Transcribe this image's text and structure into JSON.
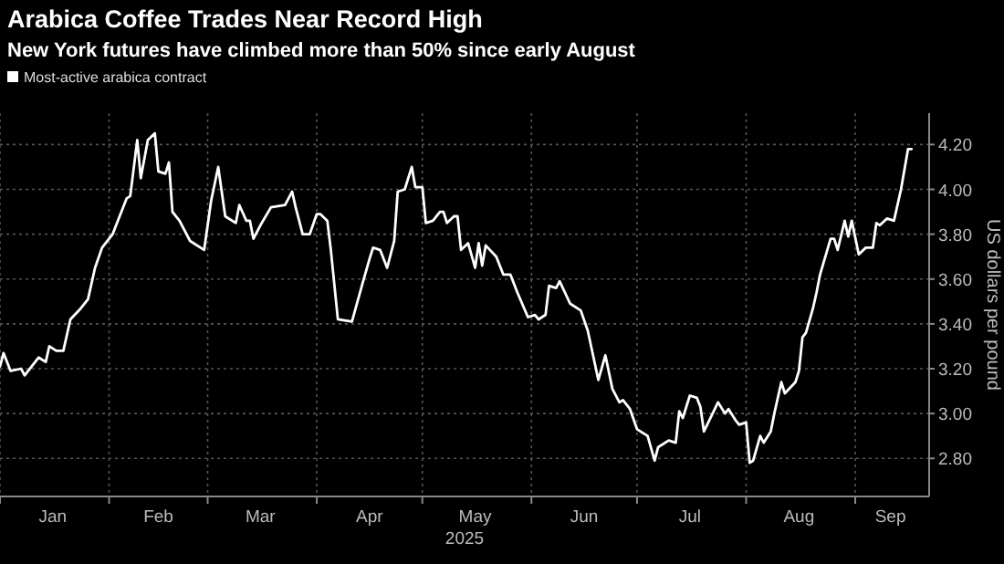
{
  "chart_data": {
    "type": "line",
    "title": "Arabica Coffee Trades Near Record High",
    "subtitle": "New York futures have climbed more than 50% since early August",
    "ylabel": "US dollars per pound",
    "xlabel": "2025",
    "x": [
      "2025-01-01",
      "2025-01-02",
      "2025-01-04",
      "2025-01-07",
      "2025-01-08",
      "2025-01-12",
      "2025-01-14",
      "2025-01-15",
      "2025-01-17",
      "2025-01-19",
      "2025-01-21",
      "2025-01-24",
      "2025-01-26",
      "2025-01-28",
      "2025-01-30",
      "2025-02-02",
      "2025-02-03",
      "2025-02-06",
      "2025-02-07",
      "2025-02-09",
      "2025-02-10",
      "2025-02-12",
      "2025-02-14",
      "2025-02-15",
      "2025-02-17",
      "2025-02-18",
      "2025-02-19",
      "2025-02-21",
      "2025-02-24",
      "2025-02-28",
      "2025-03-02",
      "2025-03-04",
      "2025-03-06",
      "2025-03-09",
      "2025-03-10",
      "2025-03-12",
      "2025-03-13",
      "2025-03-14",
      "2025-03-16",
      "2025-03-19",
      "2025-03-23",
      "2025-03-25",
      "2025-03-26",
      "2025-03-28",
      "2025-03-30",
      "2025-04-01",
      "2025-04-02",
      "2025-04-04",
      "2025-04-05",
      "2025-04-07",
      "2025-04-11",
      "2025-04-14",
      "2025-04-16",
      "2025-04-17",
      "2025-04-19",
      "2025-04-21",
      "2025-04-23",
      "2025-04-24",
      "2025-04-26",
      "2025-04-28",
      "2025-04-29",
      "2025-05-01",
      "2025-05-02",
      "2025-05-04",
      "2025-05-06",
      "2025-05-07",
      "2025-05-08",
      "2025-05-10",
      "2025-05-11",
      "2025-05-12",
      "2025-05-14",
      "2025-05-16",
      "2025-05-17",
      "2025-05-18",
      "2025-05-19",
      "2025-05-22",
      "2025-05-24",
      "2025-05-26",
      "2025-05-28",
      "2025-05-31",
      "2025-06-02",
      "2025-06-03",
      "2025-06-05",
      "2025-06-06",
      "2025-06-08",
      "2025-06-09",
      "2025-06-12",
      "2025-06-15",
      "2025-06-17",
      "2025-06-20",
      "2025-06-22",
      "2025-06-24",
      "2025-06-26",
      "2025-06-27",
      "2025-06-29",
      "2025-07-01",
      "2025-07-04",
      "2025-07-06",
      "2025-07-07",
      "2025-07-10",
      "2025-07-12",
      "2025-07-13",
      "2025-07-14",
      "2025-07-16",
      "2025-07-18",
      "2025-07-19",
      "2025-07-20",
      "2025-07-24",
      "2025-07-26",
      "2025-07-27",
      "2025-07-29",
      "2025-07-30",
      "2025-08-01",
      "2025-08-02",
      "2025-08-03",
      "2025-08-05",
      "2025-08-06",
      "2025-08-08",
      "2025-08-09",
      "2025-08-11",
      "2025-08-12",
      "2025-08-15",
      "2025-08-16",
      "2025-08-17",
      "2025-08-18",
      "2025-08-20",
      "2025-08-21",
      "2025-08-22",
      "2025-08-25",
      "2025-08-26",
      "2025-08-27",
      "2025-08-29",
      "2025-08-30",
      "2025-08-31",
      "2025-09-02",
      "2025-09-04",
      "2025-09-06",
      "2025-09-07",
      "2025-09-08",
      "2025-09-10",
      "2025-09-12",
      "2025-09-14",
      "2025-09-16",
      "2025-09-17"
    ],
    "series": [
      {
        "name": "Most-active arabica contract",
        "color": "#ffffff",
        "values": [
          3.21,
          3.27,
          3.19,
          3.2,
          3.17,
          3.25,
          3.23,
          3.3,
          3.28,
          3.28,
          3.42,
          3.47,
          3.51,
          3.65,
          3.74,
          3.8,
          3.84,
          3.96,
          3.97,
          4.22,
          4.05,
          4.22,
          4.25,
          4.08,
          4.07,
          4.12,
          3.9,
          3.86,
          3.77,
          3.73,
          3.95,
          4.1,
          3.88,
          3.85,
          3.93,
          3.86,
          3.86,
          3.78,
          3.84,
          3.92,
          3.93,
          3.99,
          3.92,
          3.8,
          3.8,
          3.89,
          3.89,
          3.86,
          3.73,
          3.42,
          3.41,
          3.58,
          3.69,
          3.74,
          3.73,
          3.65,
          3.77,
          3.99,
          4.0,
          4.1,
          4.01,
          4.01,
          3.85,
          3.86,
          3.9,
          3.9,
          3.85,
          3.88,
          3.88,
          3.73,
          3.76,
          3.65,
          3.76,
          3.66,
          3.75,
          3.7,
          3.62,
          3.62,
          3.54,
          3.43,
          3.44,
          3.42,
          3.44,
          3.57,
          3.56,
          3.59,
          3.49,
          3.46,
          3.37,
          3.15,
          3.26,
          3.11,
          3.05,
          3.06,
          3.02,
          2.93,
          2.9,
          2.79,
          2.85,
          2.88,
          2.87,
          3.01,
          2.98,
          3.08,
          3.07,
          3.03,
          2.92,
          3.05,
          3.0,
          3.02,
          2.97,
          2.95,
          2.96,
          2.78,
          2.79,
          2.9,
          2.87,
          2.92,
          3.0,
          3.14,
          3.09,
          3.14,
          3.19,
          3.34,
          3.36,
          3.47,
          3.54,
          3.62,
          3.78,
          3.78,
          3.73,
          3.86,
          3.79,
          3.86,
          3.71,
          3.74,
          3.74,
          3.85,
          3.84,
          3.87,
          3.86,
          4.0,
          4.18,
          4.18
        ]
      }
    ],
    "xlim": [
      "2025-01-01",
      "2025-09-22"
    ],
    "xticks": [
      {
        "value": "2025-01-01",
        "label": null
      },
      {
        "value": "2025-01-16",
        "label": "Jan"
      },
      {
        "value": "2025-02-01",
        "label": null
      },
      {
        "value": "2025-02-15",
        "label": "Feb"
      },
      {
        "value": "2025-03-01",
        "label": null
      },
      {
        "value": "2025-03-16",
        "label": "Mar"
      },
      {
        "value": "2025-04-01",
        "label": null
      },
      {
        "value": "2025-04-16",
        "label": "Apr"
      },
      {
        "value": "2025-05-01",
        "label": null
      },
      {
        "value": "2025-05-16",
        "label": "May"
      },
      {
        "value": "2025-06-01",
        "label": null
      },
      {
        "value": "2025-06-16",
        "label": "Jun"
      },
      {
        "value": "2025-07-01",
        "label": null
      },
      {
        "value": "2025-07-16",
        "label": "Jul"
      },
      {
        "value": "2025-08-01",
        "label": null
      },
      {
        "value": "2025-08-16",
        "label": "Aug"
      },
      {
        "value": "2025-09-01",
        "label": null
      },
      {
        "value": "2025-09-11",
        "label": "Sep"
      }
    ],
    "ylim": [
      2.63,
      4.34
    ],
    "yticks": [
      {
        "value": 2.8,
        "label": "2.80"
      },
      {
        "value": 3.0,
        "label": "3.00"
      },
      {
        "value": 3.2,
        "label": "3.20"
      },
      {
        "value": 3.4,
        "label": "3.40"
      },
      {
        "value": 3.6,
        "label": "3.60"
      },
      {
        "value": 3.8,
        "label": "3.80"
      },
      {
        "value": 4.0,
        "label": "4.00"
      },
      {
        "value": 4.2,
        "label": "4.20"
      }
    ],
    "grid": true,
    "legend": "top left",
    "marker": "none",
    "line_style": "solid"
  }
}
